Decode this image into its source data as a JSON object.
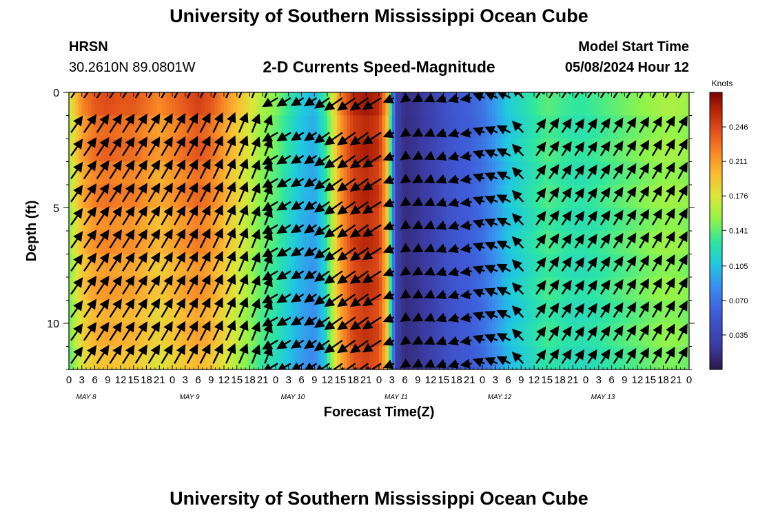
{
  "header": {
    "title": "University of Southern Mississippi Ocean Cube",
    "station": "HRSN",
    "coords": "30.2610N  89.0801W",
    "plot_title": "2-D Currents Speed-Magnitude",
    "start_label": "Model Start Time",
    "start_value": "05/08/2024 Hour 12"
  },
  "footer": {
    "title": "University of Southern Mississippi Ocean Cube"
  },
  "chart_data": {
    "type": "heatmap",
    "xlabel": "Forecast Time(Z)",
    "ylabel": "Depth (ft)",
    "colorbar_label": "Knots",
    "colorbar_ticks": [
      0.035,
      0.07,
      0.105,
      0.141,
      0.176,
      0.211,
      0.246
    ],
    "colorbar_range": [
      0.0,
      0.281
    ],
    "ylim": [
      0,
      12
    ],
    "y_ticks": [
      0,
      5,
      10
    ],
    "x_tick_labels": [
      "0",
      "3",
      "6",
      "9",
      "12",
      "15",
      "18",
      "21",
      "0",
      "3",
      "6",
      "9",
      "12",
      "15",
      "18",
      "21",
      "0",
      "3",
      "6",
      "9",
      "12",
      "15",
      "18",
      "21",
      "0",
      "3",
      "6",
      "9",
      "12",
      "15",
      "18",
      "21",
      "0",
      "3",
      "6",
      "9",
      "12",
      "15",
      "18",
      "21",
      "0",
      "3",
      "6",
      "9",
      "12",
      "15",
      "18",
      "21",
      "0"
    ],
    "x_ticks": [
      0,
      3,
      6,
      9,
      12,
      15,
      18,
      21,
      24,
      27,
      30,
      33,
      36,
      39,
      42,
      45,
      48,
      51,
      54,
      57,
      60,
      63,
      66,
      69,
      72,
      75,
      78,
      81,
      84,
      87,
      90,
      93,
      96,
      99,
      102,
      105,
      108,
      111,
      114,
      117,
      120,
      123,
      126,
      129,
      132,
      135,
      138,
      141,
      144
    ],
    "x_range_hours": [
      0,
      144
    ],
    "day_labels": [
      {
        "label": "MAY 8",
        "hour": 12
      },
      {
        "label": "MAY 9",
        "hour": 36
      },
      {
        "label": "MAY 10",
        "hour": 60
      },
      {
        "label": "MAY 11",
        "hour": 84
      },
      {
        "label": "MAY 12",
        "hour": 108
      },
      {
        "label": "MAY 13",
        "hour": 132
      }
    ],
    "speed_profile_by_hour": [
      [
        0,
        0.17
      ],
      [
        3,
        0.22
      ],
      [
        6,
        0.24
      ],
      [
        9,
        0.245
      ],
      [
        12,
        0.24
      ],
      [
        15,
        0.24
      ],
      [
        18,
        0.23
      ],
      [
        21,
        0.22
      ],
      [
        24,
        0.23
      ],
      [
        27,
        0.24
      ],
      [
        30,
        0.25
      ],
      [
        33,
        0.24
      ],
      [
        36,
        0.22
      ],
      [
        39,
        0.2
      ],
      [
        42,
        0.18
      ],
      [
        45,
        0.16
      ],
      [
        48,
        0.15
      ],
      [
        51,
        0.13
      ],
      [
        54,
        0.11
      ],
      [
        57,
        0.1
      ],
      [
        60,
        0.14
      ],
      [
        63,
        0.22
      ],
      [
        66,
        0.26
      ],
      [
        69,
        0.27
      ],
      [
        72,
        0.26
      ],
      [
        74,
        0.2
      ],
      [
        75,
        0.1
      ],
      [
        76,
        0.03
      ],
      [
        78,
        0.015
      ],
      [
        81,
        0.02
      ],
      [
        84,
        0.03
      ],
      [
        87,
        0.045
      ],
      [
        90,
        0.055
      ],
      [
        93,
        0.06
      ],
      [
        96,
        0.07
      ],
      [
        99,
        0.09
      ],
      [
        102,
        0.11
      ],
      [
        105,
        0.12
      ],
      [
        108,
        0.13
      ],
      [
        111,
        0.14
      ],
      [
        114,
        0.135
      ],
      [
        117,
        0.13
      ],
      [
        120,
        0.13
      ],
      [
        123,
        0.135
      ],
      [
        126,
        0.14
      ],
      [
        129,
        0.145
      ],
      [
        132,
        0.15
      ],
      [
        135,
        0.155
      ],
      [
        138,
        0.16
      ],
      [
        141,
        0.16
      ],
      [
        144,
        0.155
      ]
    ],
    "vector_rows_depth_ft": [
      0,
      1.5,
      2.5,
      3.5,
      4.5,
      5.5,
      6.5,
      7.5,
      8.5,
      9.5,
      10.5,
      11.5
    ],
    "vector_direction_by_hour_deg": [
      [
        0,
        55
      ],
      [
        24,
        60
      ],
      [
        46,
        70
      ],
      [
        48,
        210
      ],
      [
        60,
        215
      ],
      [
        72,
        215
      ],
      [
        75,
        200
      ],
      [
        78,
        215
      ],
      [
        84,
        205
      ],
      [
        93,
        195
      ],
      [
        96,
        160
      ],
      [
        105,
        150
      ],
      [
        108,
        55
      ],
      [
        130,
        58
      ],
      [
        144,
        62
      ]
    ]
  }
}
